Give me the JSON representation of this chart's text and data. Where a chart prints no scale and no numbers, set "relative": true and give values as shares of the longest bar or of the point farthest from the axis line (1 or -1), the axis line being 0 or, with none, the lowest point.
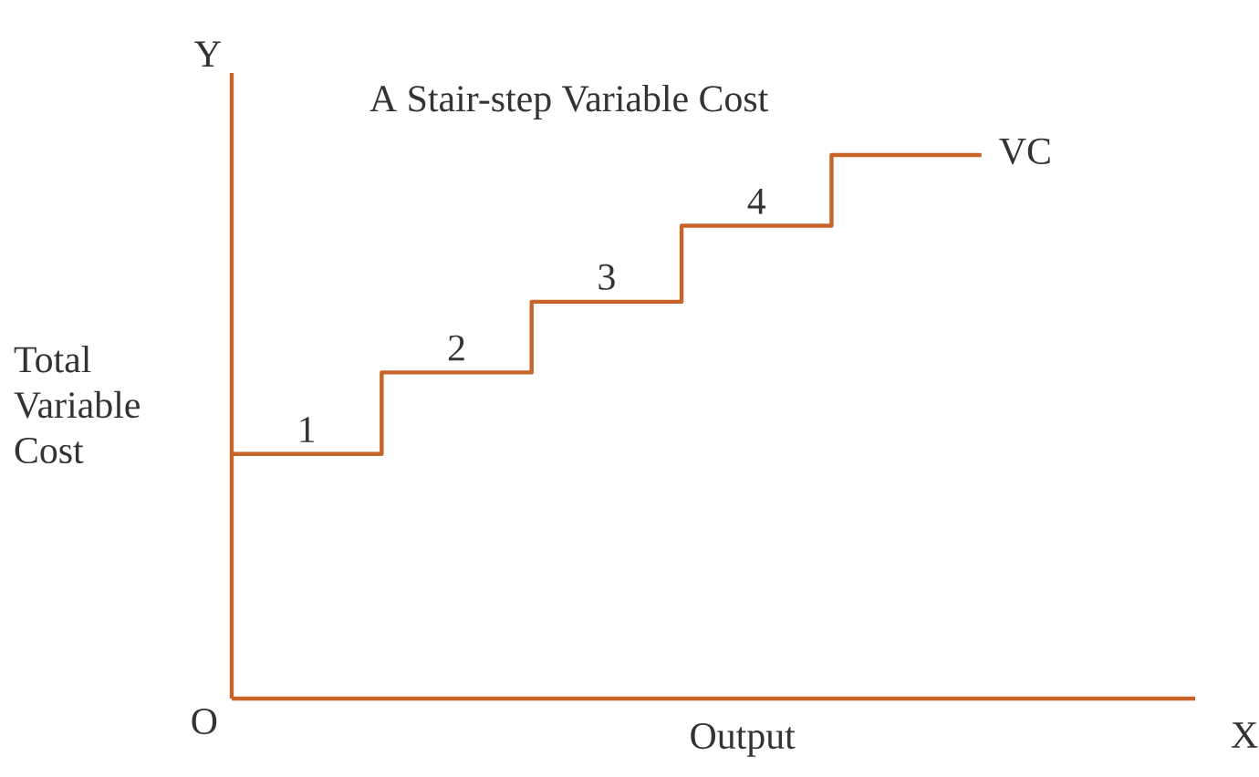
{
  "chart_data": {
    "type": "step",
    "relative": true,
    "title": "A Stair-step Variable Cost",
    "xlabel": "Output",
    "ylabel": "Total Variable Cost",
    "categories": [
      null,
      null,
      null,
      null,
      null,
      null
    ],
    "series": [
      {
        "name": "VC",
        "color": "#c8642a",
        "values": [
          0.45,
          0.6,
          0.73,
          0.87,
          1.0,
          1.0
        ]
      }
    ],
    "annotations": [
      "Y",
      "X",
      "O",
      {
        "text": "1",
        "y": 0.45
      },
      {
        "text": "2",
        "y": 0.6
      },
      {
        "text": "3",
        "y": 0.73
      },
      {
        "text": "4",
        "y": 0.87
      }
    ],
    "tick_labels": false,
    "grid": false,
    "legend": false,
    "marker": "none",
    "line_style": "solid"
  }
}
